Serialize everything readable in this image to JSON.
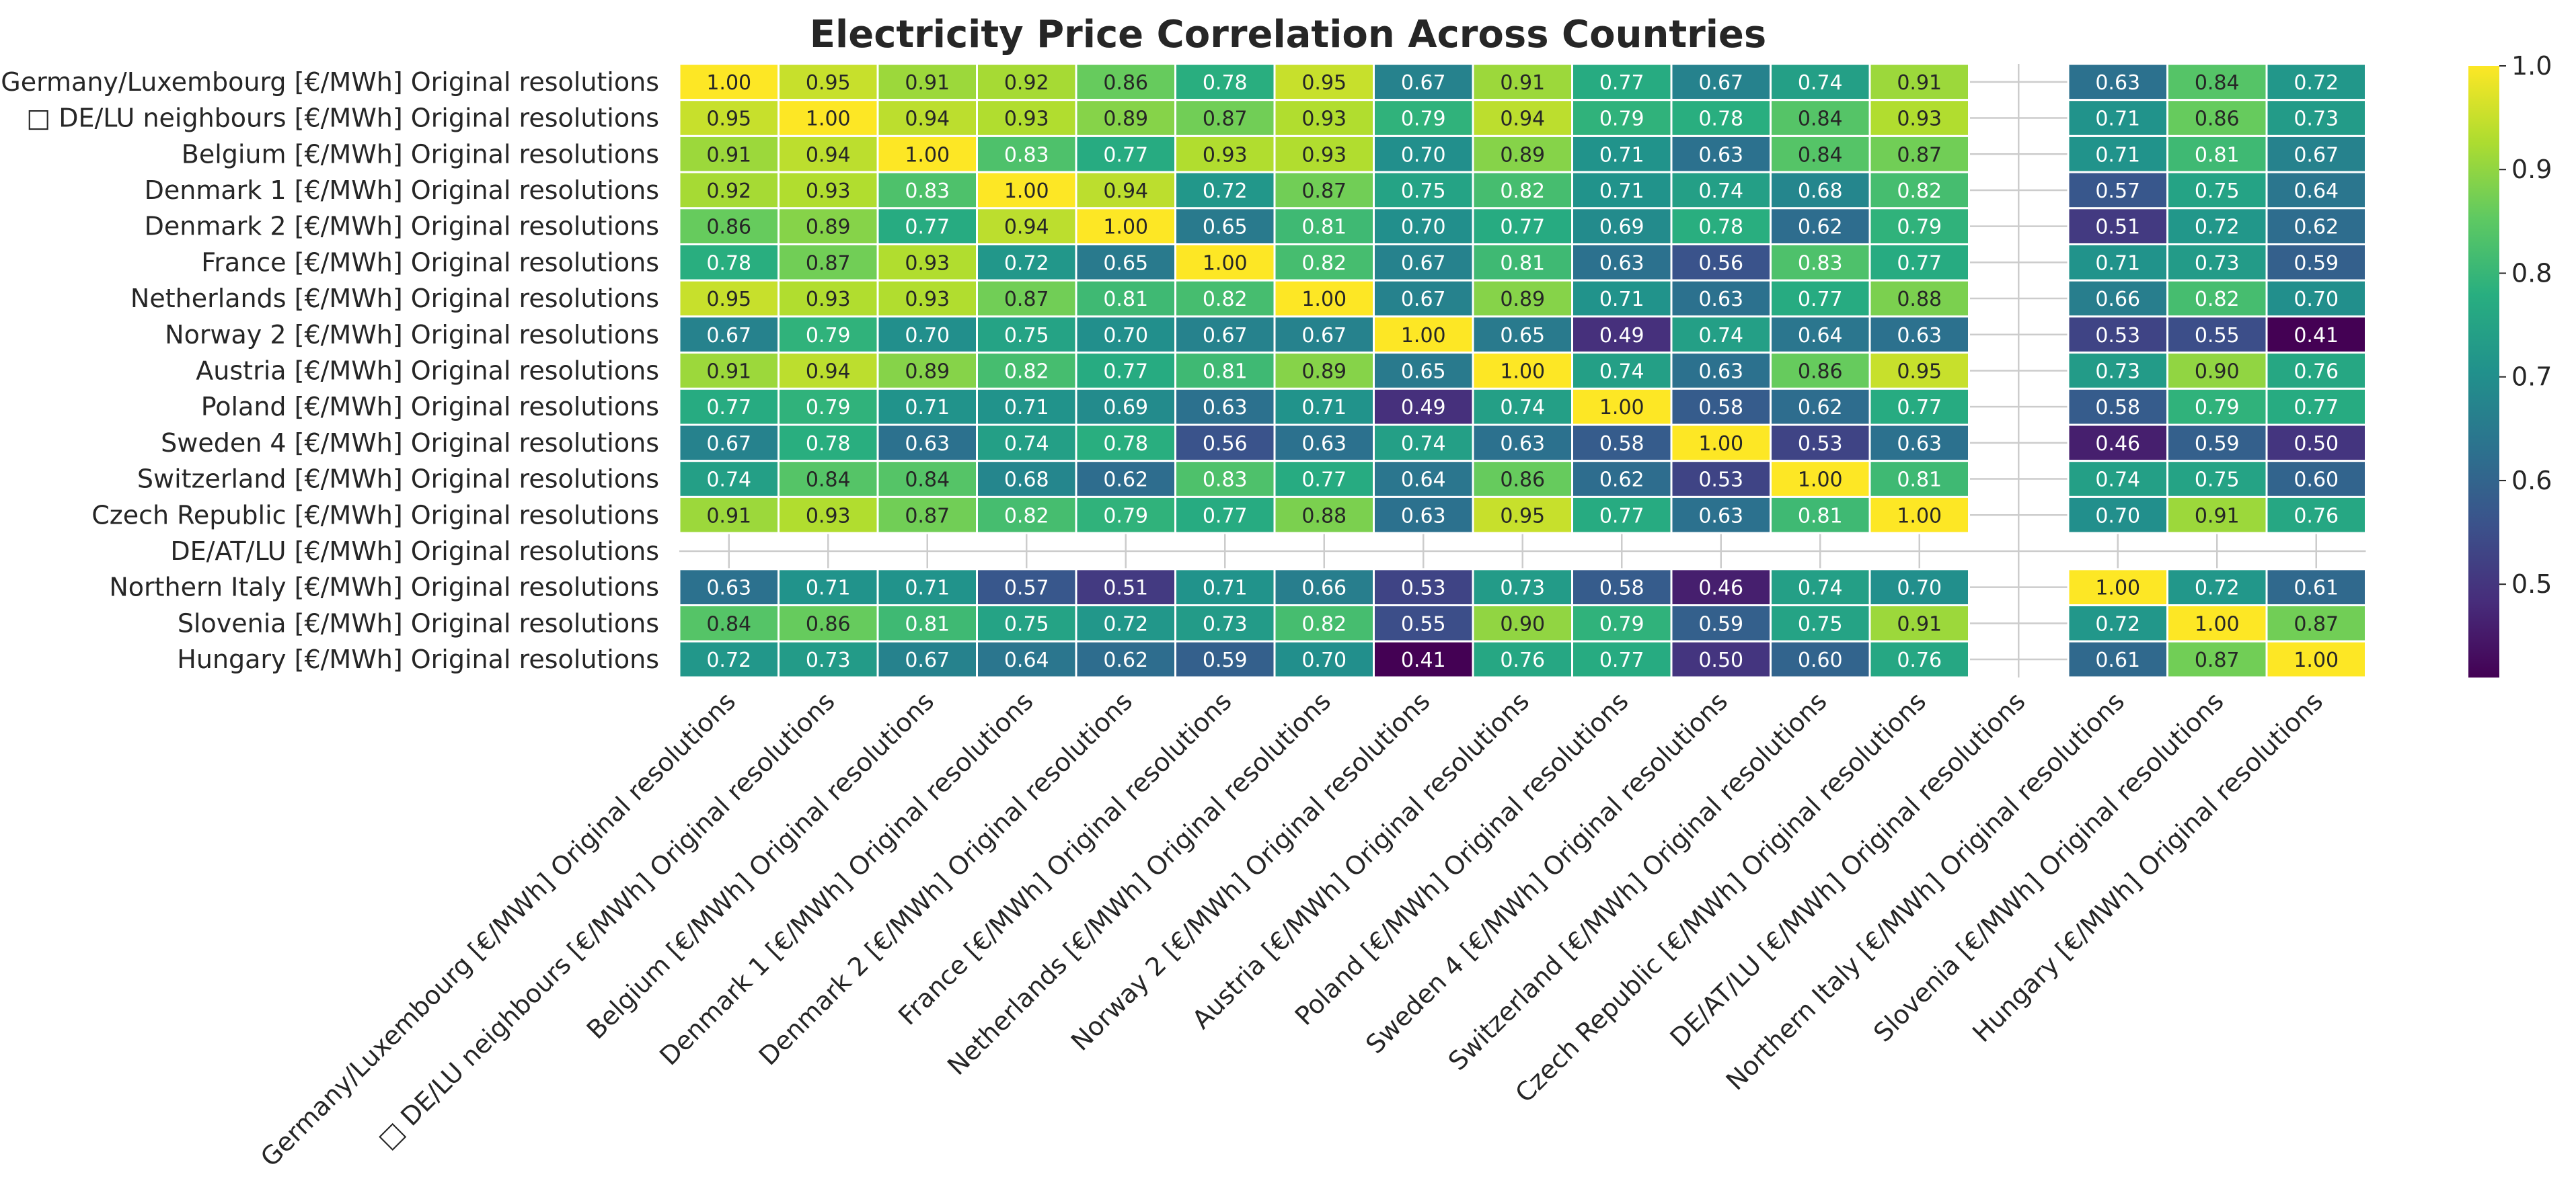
{
  "chart_data": {
    "type": "heatmap",
    "title": "Electricity Price Correlation Across Countries",
    "colormap": "viridis",
    "vmin": 0.41,
    "vmax": 1.0,
    "colorbar_ticks": [
      "0.5",
      "0.6",
      "0.7",
      "0.8",
      "0.9",
      "1.0"
    ],
    "colorbar_tick_values": [
      0.5,
      0.6,
      0.7,
      0.8,
      0.9,
      1.0
    ],
    "grid": true,
    "labels": [
      "Germany/Luxembourg [€/MWh] Original resolutions",
      "□ DE/LU neighbours [€/MWh] Original resolutions",
      "Belgium [€/MWh] Original resolutions",
      "Denmark 1 [€/MWh] Original resolutions",
      "Denmark 2 [€/MWh] Original resolutions",
      "France [€/MWh] Original resolutions",
      "Netherlands [€/MWh] Original resolutions",
      "Norway 2 [€/MWh] Original resolutions",
      "Austria [€/MWh] Original resolutions",
      "Poland [€/MWh] Original resolutions",
      "Sweden 4 [€/MWh] Original resolutions",
      "Switzerland [€/MWh] Original resolutions",
      "Czech Republic [€/MWh] Original resolutions",
      "DE/AT/LU [€/MWh] Original resolutions",
      "Northern Italy [€/MWh] Original resolutions",
      "Slovenia [€/MWh] Original resolutions",
      "Hungary [€/MWh] Original resolutions"
    ],
    "matrix": [
      [
        1.0,
        0.95,
        0.91,
        0.92,
        0.86,
        0.78,
        0.95,
        0.67,
        0.91,
        0.77,
        0.67,
        0.74,
        0.91,
        null,
        0.63,
        0.84,
        0.72
      ],
      [
        0.95,
        1.0,
        0.94,
        0.93,
        0.89,
        0.87,
        0.93,
        0.79,
        0.94,
        0.79,
        0.78,
        0.84,
        0.93,
        null,
        0.71,
        0.86,
        0.73
      ],
      [
        0.91,
        0.94,
        1.0,
        0.83,
        0.77,
        0.93,
        0.93,
        0.7,
        0.89,
        0.71,
        0.63,
        0.84,
        0.87,
        null,
        0.71,
        0.81,
        0.67
      ],
      [
        0.92,
        0.93,
        0.83,
        1.0,
        0.94,
        0.72,
        0.87,
        0.75,
        0.82,
        0.71,
        0.74,
        0.68,
        0.82,
        null,
        0.57,
        0.75,
        0.64
      ],
      [
        0.86,
        0.89,
        0.77,
        0.94,
        1.0,
        0.65,
        0.81,
        0.7,
        0.77,
        0.69,
        0.78,
        0.62,
        0.79,
        null,
        0.51,
        0.72,
        0.62
      ],
      [
        0.78,
        0.87,
        0.93,
        0.72,
        0.65,
        1.0,
        0.82,
        0.67,
        0.81,
        0.63,
        0.56,
        0.83,
        0.77,
        null,
        0.71,
        0.73,
        0.59
      ],
      [
        0.95,
        0.93,
        0.93,
        0.87,
        0.81,
        0.82,
        1.0,
        0.67,
        0.89,
        0.71,
        0.63,
        0.77,
        0.88,
        null,
        0.66,
        0.82,
        0.7
      ],
      [
        0.67,
        0.79,
        0.7,
        0.75,
        0.7,
        0.67,
        0.67,
        1.0,
        0.65,
        0.49,
        0.74,
        0.64,
        0.63,
        null,
        0.53,
        0.55,
        0.41
      ],
      [
        0.91,
        0.94,
        0.89,
        0.82,
        0.77,
        0.81,
        0.89,
        0.65,
        1.0,
        0.74,
        0.63,
        0.86,
        0.95,
        null,
        0.73,
        0.9,
        0.76
      ],
      [
        0.77,
        0.79,
        0.71,
        0.71,
        0.69,
        0.63,
        0.71,
        0.49,
        0.74,
        1.0,
        0.58,
        0.62,
        0.77,
        null,
        0.58,
        0.79,
        0.77
      ],
      [
        0.67,
        0.78,
        0.63,
        0.74,
        0.78,
        0.56,
        0.63,
        0.74,
        0.63,
        0.58,
        1.0,
        0.53,
        0.63,
        null,
        0.46,
        0.59,
        0.5
      ],
      [
        0.74,
        0.84,
        0.84,
        0.68,
        0.62,
        0.83,
        0.77,
        0.64,
        0.86,
        0.62,
        0.53,
        1.0,
        0.81,
        null,
        0.74,
        0.75,
        0.6
      ],
      [
        0.91,
        0.93,
        0.87,
        0.82,
        0.79,
        0.77,
        0.88,
        0.63,
        0.95,
        0.77,
        0.63,
        0.81,
        1.0,
        null,
        0.7,
        0.91,
        0.76
      ],
      [
        null,
        null,
        null,
        null,
        null,
        null,
        null,
        null,
        null,
        null,
        null,
        null,
        null,
        null,
        null,
        null,
        null
      ],
      [
        0.63,
        0.71,
        0.71,
        0.57,
        0.51,
        0.71,
        0.66,
        0.53,
        0.73,
        0.58,
        0.46,
        0.74,
        0.7,
        null,
        1.0,
        0.72,
        0.61
      ],
      [
        0.84,
        0.86,
        0.81,
        0.75,
        0.72,
        0.73,
        0.82,
        0.55,
        0.9,
        0.79,
        0.59,
        0.75,
        0.91,
        null,
        0.72,
        1.0,
        0.87
      ],
      [
        0.72,
        0.73,
        0.67,
        0.64,
        0.62,
        0.59,
        0.7,
        0.41,
        0.76,
        0.77,
        0.5,
        0.6,
        0.76,
        null,
        0.61,
        0.87,
        1.0
      ]
    ]
  }
}
